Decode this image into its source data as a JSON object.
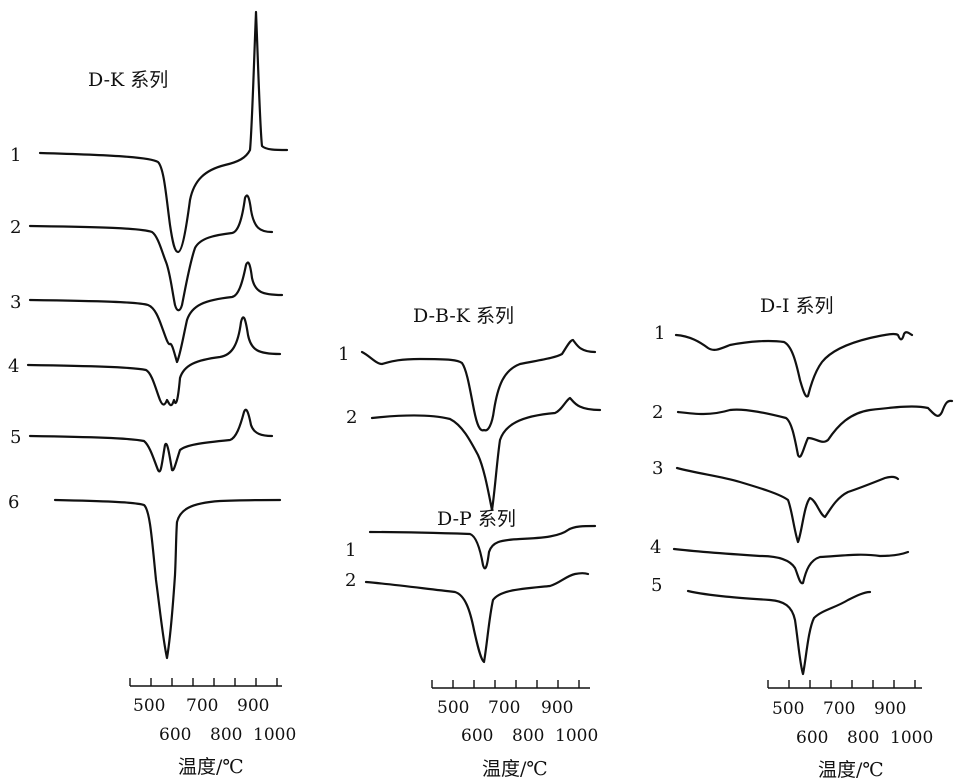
{
  "chart_data": [
    {
      "type": "line",
      "title": "D-K 系列",
      "xlabel": "温度/℃",
      "tick_labels_upper": [
        "500",
        "700",
        "900"
      ],
      "tick_labels_lower": [
        "600",
        "800",
        "1000"
      ],
      "series": [
        {
          "name": "1"
        },
        {
          "name": "2"
        },
        {
          "name": "3"
        },
        {
          "name": "4"
        },
        {
          "name": "5"
        },
        {
          "name": "6"
        }
      ]
    },
    {
      "type": "line",
      "title": "D-B-K 系列",
      "xlabel": "温度/℃",
      "tick_labels_upper": [
        "500",
        "700",
        "900"
      ],
      "tick_labels_lower": [
        "600",
        "800",
        "1000"
      ],
      "series": [
        {
          "name": "1"
        },
        {
          "name": "2"
        }
      ]
    },
    {
      "type": "line",
      "title": "D-P 系列",
      "series": [
        {
          "name": "1"
        },
        {
          "name": "2"
        }
      ]
    },
    {
      "type": "line",
      "title": "D-I 系列",
      "xlabel": "温度/℃",
      "tick_labels_upper": [
        "500",
        "700",
        "900"
      ],
      "tick_labels_lower": [
        "600",
        "800",
        "1000"
      ],
      "series": [
        {
          "name": "1"
        },
        {
          "name": "2"
        },
        {
          "name": "3"
        },
        {
          "name": "4"
        },
        {
          "name": "5"
        }
      ]
    }
  ]
}
